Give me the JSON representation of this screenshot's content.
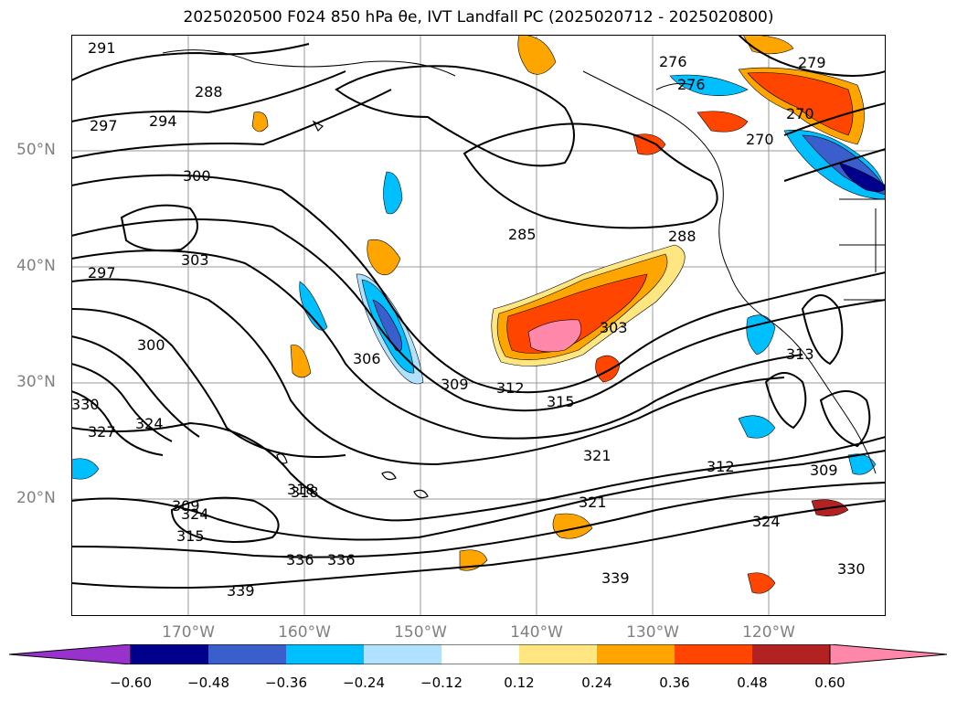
{
  "title": "2025020500 F024 850 hPa θe, IVT Landfall PC (2025020712 - 2025020800)",
  "map": {
    "lat_labels": [
      "50°N",
      "40°N",
      "30°N",
      "20°N"
    ],
    "lon_labels": [
      "170°W",
      "160°W",
      "150°W",
      "140°W",
      "130°W",
      "120°W"
    ],
    "contour_labels": [
      "291",
      "288",
      "297",
      "294",
      "300",
      "303",
      "297",
      "300",
      "306",
      "309",
      "312",
      "315",
      "318",
      "321",
      "324",
      "327",
      "330",
      "336",
      "339",
      "285",
      "288",
      "276",
      "279",
      "270",
      "276",
      "270",
      "303",
      "313",
      "309",
      "312",
      "324",
      "330",
      "321",
      "324",
      "315",
      "309",
      "318",
      "336",
      "339"
    ]
  },
  "colorbar": {
    "ticks": [
      "−0.60",
      "−0.48",
      "−0.36",
      "−0.24",
      "−0.12",
      "0.12",
      "0.24",
      "0.36",
      "0.48",
      "0.60"
    ],
    "colors": [
      "#9932cc",
      "#00008b",
      "#3a5fcd",
      "#00bfff",
      "#b0e2ff",
      "#ffffff",
      "#ffe680",
      "#ffa500",
      "#ff4500",
      "#b22222",
      "#ff88aa"
    ]
  }
}
